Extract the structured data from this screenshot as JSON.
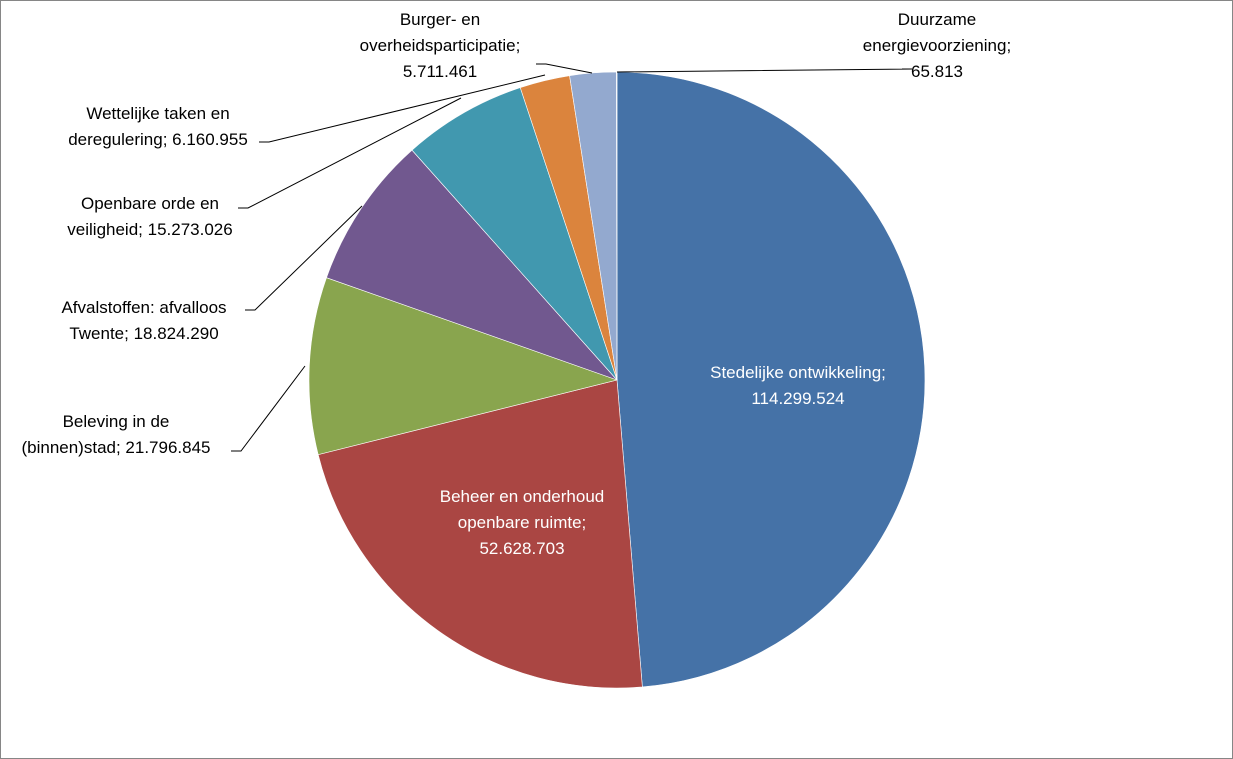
{
  "chart_data": {
    "type": "pie",
    "title": "",
    "slices": [
      {
        "label": "Stedelijke ontwikkeling",
        "value": 114299524,
        "display": "114.299.524",
        "color": "#4572A7"
      },
      {
        "label": "Beheer en onderhoud openbare ruimte",
        "value": 52628703,
        "display": "52.628.703",
        "color": "#AA4643"
      },
      {
        "label": "Beleving in de (binnen)stad",
        "value": 21796845,
        "display": "21.796.845",
        "color": "#89A54E"
      },
      {
        "label": "Afvalstoffen: afvalloos Twente",
        "value": 18824290,
        "display": "18.824.290",
        "color": "#71588F"
      },
      {
        "label": "Openbare orde en veiligheid",
        "value": 15273026,
        "display": "15.273.026",
        "color": "#4198AF"
      },
      {
        "label": "Wettelijke taken en deregulering",
        "value": 6160955,
        "display": "6.160.955",
        "color": "#DB843D"
      },
      {
        "label": "Burger- en overheidsparticipatie",
        "value": 5711461,
        "display": "5.711.461",
        "color": "#93A9CF"
      },
      {
        "label": "Duurzame energievoorziening",
        "value": 65813,
        "display": "65.813",
        "color": "#4572A7"
      }
    ],
    "data_labels": [
      {
        "lines": [
          "Stedelijke ontwikkeling;",
          "114.299.524"
        ]
      },
      {
        "lines": [
          "Beheer en onderhoud",
          "openbare ruimte;",
          "52.628.703"
        ]
      },
      {
        "lines": [
          "Beleving in de",
          "(binnen)stad;  21.796.845"
        ]
      },
      {
        "lines": [
          "Afvalstoffen: afvalloos",
          "Twente;  18.824.290"
        ]
      },
      {
        "lines": [
          "Openbare orde en",
          "veiligheid;  15.273.026"
        ]
      },
      {
        "lines": [
          "Wettelijke taken en",
          "deregulering;  6.160.955"
        ]
      },
      {
        "lines": [
          "Burger- en",
          "overheidsparticipatie;",
          "5.711.461"
        ]
      },
      {
        "lines": [
          "Duurzame",
          "energievoorziening;",
          "65.813"
        ]
      }
    ],
    "start": "12 o'clock",
    "direction": "clockwise",
    "legend": "none"
  }
}
